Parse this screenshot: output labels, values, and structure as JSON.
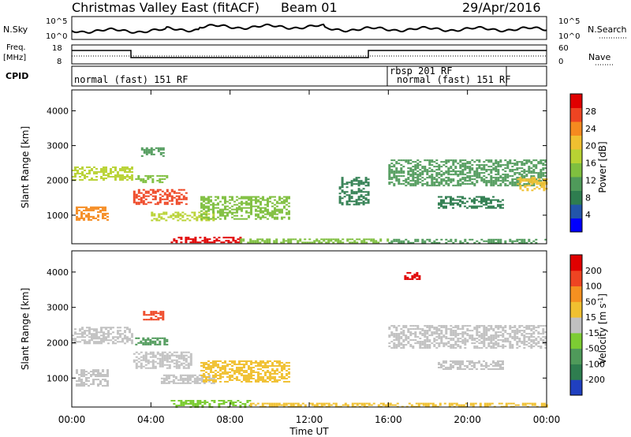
{
  "header": {
    "station": "Christmas Valley East",
    "mode": "(fitACF)",
    "beam": "Beam 01",
    "date": "29/Apr/2016"
  },
  "left_labels": {
    "nsky": "N.Sky",
    "freq": "Freq.",
    "freq_unit": "[MHz]",
    "cpid": "CPID"
  },
  "right_labels": {
    "nsearch": "N.Search",
    "nave": "Nave"
  },
  "noise_axis": {
    "top": "10^5",
    "bottom": "10^0"
  },
  "freq_axis": {
    "top": "18",
    "bottom": "8"
  },
  "nave_axis": {
    "top": "60",
    "bottom": "0"
  },
  "cpid_labels": [
    {
      "text": "normal (fast) 151 RF",
      "start_hour": 0
    },
    {
      "text": "rbsp 201 RF",
      "start_hour": 16
    },
    {
      "text": "normal (fast) 151 RF",
      "start_hour": 16.3
    }
  ],
  "time_axis": {
    "title": "Time UT",
    "ticks": [
      "00:00",
      "04:00",
      "08:00",
      "12:00",
      "16:00",
      "20:00",
      "00:00"
    ]
  },
  "chart_data": [
    {
      "type": "heatmap",
      "title": "",
      "xlabel": "Time UT",
      "ylabel": "Slant Range [km]",
      "xlim": [
        0,
        24
      ],
      "ylim": [
        180,
        4600
      ],
      "yticks": [
        "1000",
        "2000",
        "3000",
        "4000"
      ],
      "colorbar": {
        "label": "Power [dB]",
        "ticks": [
          "28",
          "24",
          "20",
          "16",
          "12",
          "8",
          "4"
        ],
        "colors": [
          "#0000ff",
          "#2255aa",
          "#2e7d4f",
          "#4f9a5a",
          "#7fbf3f",
          "#b8d233",
          "#f0c030",
          "#f58a1f",
          "#ee4422",
          "#e00000"
        ]
      },
      "regions": [
        {
          "t0": 0.0,
          "t1": 3.0,
          "r0": 2000,
          "r1": 2400,
          "value": 14
        },
        {
          "t0": 0.2,
          "t1": 1.8,
          "r0": 850,
          "r1": 1250,
          "value": 20
        },
        {
          "t0": 3.1,
          "t1": 5.8,
          "r0": 1300,
          "r1": 1750,
          "value": 24
        },
        {
          "t0": 3.2,
          "t1": 4.8,
          "r0": 1950,
          "r1": 2150,
          "value": 12
        },
        {
          "t0": 3.5,
          "t1": 4.6,
          "r0": 2700,
          "r1": 2950,
          "value": 10
        },
        {
          "t0": 4.0,
          "t1": 7.2,
          "r0": 850,
          "r1": 1100,
          "value": 14
        },
        {
          "t0": 6.5,
          "t1": 11.0,
          "r0": 900,
          "r1": 1550,
          "value": 12
        },
        {
          "t0": 5.0,
          "t1": 8.5,
          "r0": 200,
          "r1": 380,
          "value": 26
        },
        {
          "t0": 8.5,
          "t1": 16.0,
          "r0": 200,
          "r1": 330,
          "value": 12
        },
        {
          "t0": 13.5,
          "t1": 15.0,
          "r0": 1300,
          "r1": 2100,
          "value": 8
        },
        {
          "t0": 16.0,
          "t1": 24.0,
          "r0": 1850,
          "r1": 2600,
          "value": 10
        },
        {
          "t0": 22.5,
          "t1": 24.0,
          "r0": 1700,
          "r1": 2100,
          "value": 18
        },
        {
          "t0": 18.5,
          "t1": 21.8,
          "r0": 1200,
          "r1": 1550,
          "value": 8
        },
        {
          "t0": 16.0,
          "t1": 24.0,
          "r0": 200,
          "r1": 320,
          "value": 10
        }
      ]
    },
    {
      "type": "heatmap",
      "title": "",
      "xlabel": "Time UT",
      "ylabel": "Slant Range [km]",
      "xlim": [
        0,
        24
      ],
      "ylim": [
        180,
        4600
      ],
      "yticks": [
        "1000",
        "2000",
        "3000",
        "4000"
      ],
      "colorbar": {
        "label": "Velocity [m s^-1]",
        "ticks": [
          "200",
          "100",
          "50",
          "15",
          "-15",
          "-50",
          "-100",
          "-200"
        ],
        "colors": [
          "#2040c0",
          "#2e7d4f",
          "#4f9a5a",
          "#7ccc33",
          "#c0c0c0",
          "#f0c030",
          "#f59020",
          "#ee4422",
          "#e00000"
        ]
      },
      "regions": [
        {
          "t0": 0.0,
          "t1": 3.0,
          "r0": 2000,
          "r1": 2450,
          "value": 0
        },
        {
          "t0": 0.2,
          "t1": 1.8,
          "r0": 800,
          "r1": 1250,
          "value": 0
        },
        {
          "t0": 3.1,
          "t1": 6.0,
          "r0": 1300,
          "r1": 1750,
          "value": 0
        },
        {
          "t0": 3.2,
          "t1": 4.8,
          "r0": 1950,
          "r1": 2150,
          "value": -40
        },
        {
          "t0": 3.6,
          "t1": 4.6,
          "r0": 2650,
          "r1": 2900,
          "value": 120
        },
        {
          "t0": 4.5,
          "t1": 7.2,
          "r0": 850,
          "r1": 1100,
          "value": 0
        },
        {
          "t0": 6.5,
          "t1": 11.0,
          "r0": 900,
          "r1": 1500,
          "value": 30
        },
        {
          "t0": 5.0,
          "t1": 9.0,
          "r0": 200,
          "r1": 380,
          "value": -30
        },
        {
          "t0": 9.0,
          "t1": 24.0,
          "r0": 200,
          "r1": 300,
          "value": 30
        },
        {
          "t0": 16.0,
          "t1": 24.0,
          "r0": 1850,
          "r1": 2500,
          "value": 0
        },
        {
          "t0": 18.5,
          "t1": 21.8,
          "r0": 1250,
          "r1": 1500,
          "value": 0
        },
        {
          "t0": 16.8,
          "t1": 17.6,
          "r0": 3800,
          "r1": 4000,
          "value": 220
        }
      ]
    }
  ]
}
